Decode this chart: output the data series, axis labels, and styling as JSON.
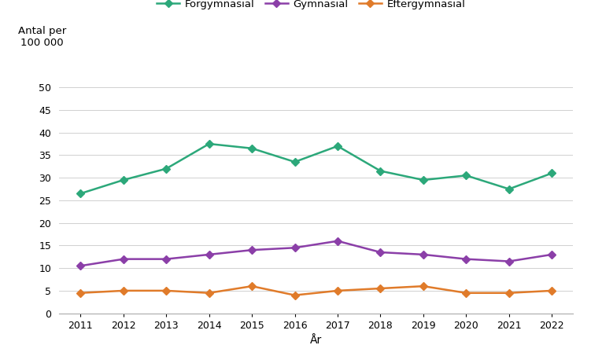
{
  "years": [
    2011,
    2012,
    2013,
    2014,
    2015,
    2016,
    2017,
    2018,
    2019,
    2020,
    2021,
    2022
  ],
  "forgymnasial": [
    26.5,
    29.5,
    32.0,
    37.5,
    36.5,
    33.5,
    37.0,
    31.5,
    29.5,
    30.5,
    27.5,
    31.0
  ],
  "gymnasial": [
    10.5,
    12.0,
    12.0,
    13.0,
    14.0,
    14.5,
    16.0,
    13.5,
    13.0,
    12.0,
    11.5,
    13.0
  ],
  "eftergymnasial": [
    4.5,
    5.0,
    5.0,
    4.5,
    6.0,
    4.0,
    5.0,
    5.5,
    6.0,
    4.5,
    4.5,
    5.0
  ],
  "forgymnasial_color": "#2ca87a",
  "gymnasial_color": "#8b3fa8",
  "eftergymnasial_color": "#e07b2a",
  "ylabel_text_line1": "Antal per",
  "ylabel_text_line2": "100 000",
  "xlabel": "År",
  "legend_labels": [
    "Förgymnasial",
    "Gymnasial",
    "Eftergymnasial"
  ],
  "ylim": [
    0,
    52
  ],
  "yticks": [
    0,
    5,
    10,
    15,
    20,
    25,
    30,
    35,
    40,
    45,
    50
  ],
  "background_color": "#ffffff",
  "grid_color": "#d0d0d0",
  "marker": "D",
  "markersize": 5,
  "linewidth": 1.8
}
